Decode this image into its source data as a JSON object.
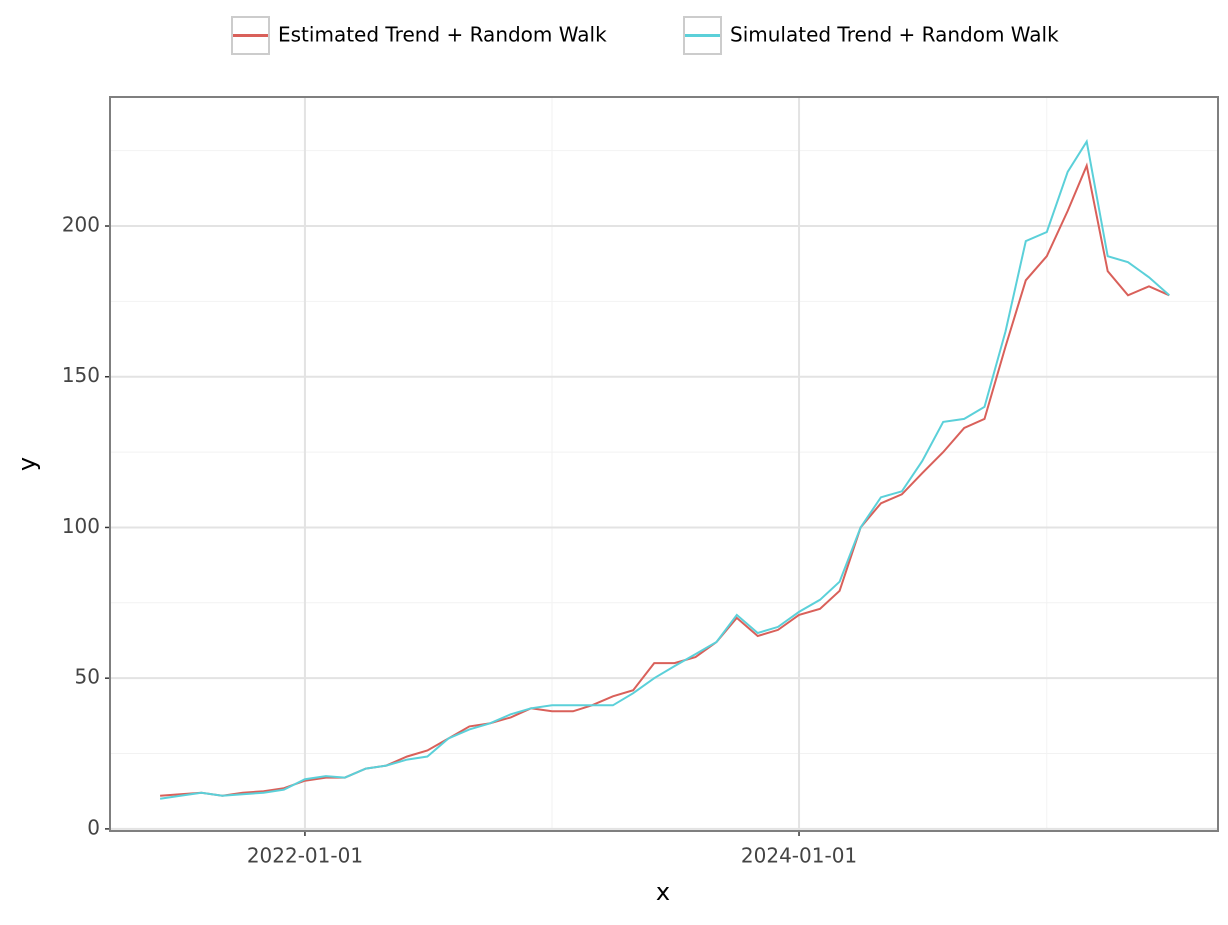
{
  "chart_data": {
    "type": "line",
    "x_label": "x",
    "y_label": "y",
    "x": [
      "2021-06-01",
      "2021-07-01",
      "2021-08-01",
      "2021-09-01",
      "2021-10-01",
      "2021-11-01",
      "2021-12-01",
      "2022-01-01",
      "2022-02-01",
      "2022-03-01",
      "2022-04-01",
      "2022-05-01",
      "2022-06-01",
      "2022-07-01",
      "2022-08-01",
      "2022-09-01",
      "2022-10-01",
      "2022-11-01",
      "2022-12-01",
      "2023-01-01",
      "2023-02-01",
      "2023-03-01",
      "2023-04-01",
      "2023-05-01",
      "2023-06-01",
      "2023-07-01",
      "2023-08-01",
      "2023-09-01",
      "2023-10-01",
      "2023-11-01",
      "2023-12-01",
      "2024-01-01",
      "2024-02-01",
      "2024-03-01",
      "2024-04-01",
      "2024-05-01",
      "2024-06-01",
      "2024-07-01",
      "2024-08-01",
      "2024-09-01",
      "2024-10-01",
      "2024-11-01",
      "2024-12-01",
      "2025-01-01",
      "2025-02-01",
      "2025-03-01",
      "2025-04-01",
      "2025-05-01",
      "2025-06-01",
      "2025-07-01"
    ],
    "series": [
      {
        "name": "Estimated Trend + Random Walk",
        "color": "#d9605a",
        "values": [
          11,
          11.5,
          12,
          11,
          12,
          12.5,
          13.5,
          16,
          17,
          17,
          20,
          21,
          24,
          26,
          30,
          34,
          35,
          37,
          40,
          39,
          39,
          41,
          44,
          46,
          55,
          55,
          57,
          62,
          70,
          64,
          66,
          71,
          73,
          79,
          100,
          108,
          111,
          118,
          125,
          133,
          136,
          160,
          182,
          190,
          205,
          220,
          185,
          177,
          180,
          177
        ]
      },
      {
        "name": "Simulated Trend + Random Walk",
        "color": "#5bd0d9",
        "values": [
          10,
          11,
          12,
          11,
          11.5,
          12,
          13,
          16.5,
          17.5,
          17,
          20,
          21,
          23,
          24,
          30,
          33,
          35,
          38,
          40,
          41,
          41,
          41,
          41,
          45,
          50,
          54,
          58,
          62,
          71,
          65,
          67,
          72,
          76,
          82,
          100,
          110,
          112,
          122,
          135,
          136,
          140,
          165,
          195,
          198,
          218,
          228,
          190,
          188,
          183,
          177
        ]
      }
    ],
    "xlim": [
      "2021-03-19",
      "2025-09-11"
    ],
    "xticks": [
      "2022-01-01",
      "2024-01-01"
    ],
    "xminor": [
      "2023-01-01",
      "2025-01-01"
    ],
    "ylim": [
      -0.7,
      242.8
    ],
    "yticks": [
      0,
      50,
      100,
      150,
      200
    ],
    "yminor": [
      25,
      75,
      125,
      175,
      225
    ],
    "grid": true,
    "legend": "top"
  }
}
